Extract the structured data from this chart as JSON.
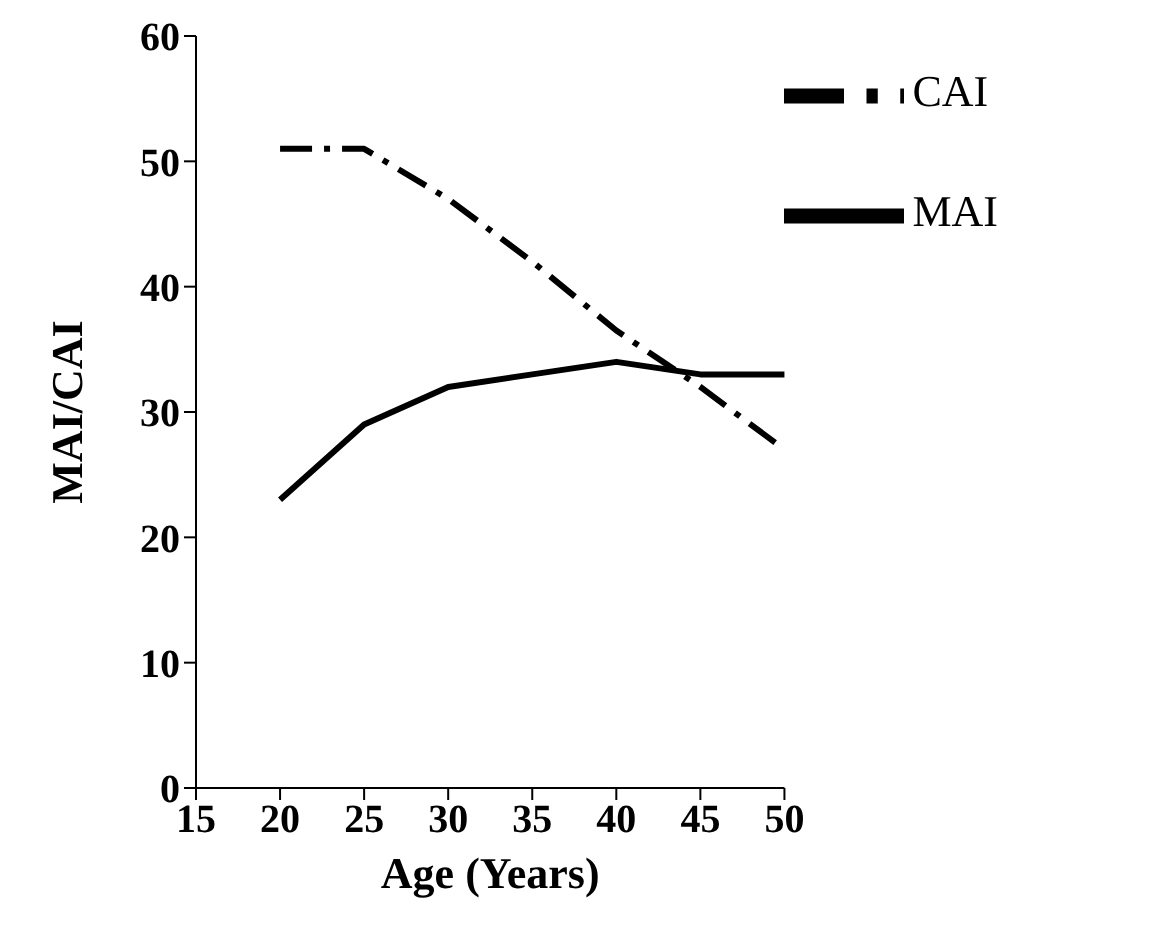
{
  "chart_data": {
    "type": "line",
    "xlabel": "Age (Years)",
    "ylabel": "MAI/CAI",
    "categories": [
      "15",
      "20",
      "25",
      "30",
      "35",
      "40",
      "45",
      "50"
    ],
    "series": [
      {
        "name": "CAI",
        "color": "#000000",
        "line_style": "dashed",
        "values": [
          null,
          51,
          51,
          47,
          42,
          36.5,
          32,
          27
        ]
      },
      {
        "name": "MAI",
        "color": "#000000",
        "line_style": "solid",
        "values": [
          null,
          23,
          29,
          32,
          33,
          34,
          33,
          33
        ]
      }
    ],
    "ylim": [
      0,
      60
    ],
    "yticks": [
      0,
      10,
      20,
      30,
      40,
      50,
      60
    ],
    "grid": false,
    "legend": "top right"
  }
}
